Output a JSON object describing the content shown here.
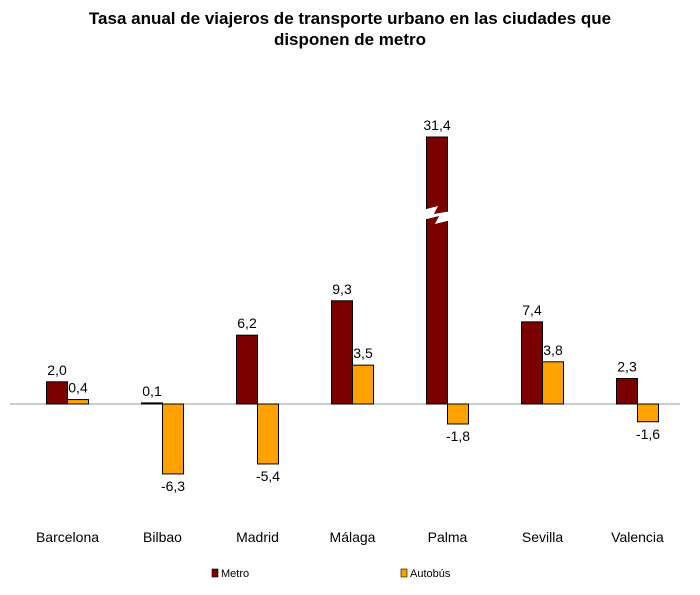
{
  "chart_data": {
    "type": "bar",
    "title_lines": [
      "Tasa anual de viajeros de transporte urbano en las ciudades que",
      "disponen de metro"
    ],
    "categories": [
      "Barcelona",
      "Bilbao",
      "Madrid",
      "Málaga",
      "Palma",
      "Sevilla",
      "Valencia"
    ],
    "series": [
      {
        "name": "Metro",
        "color": "#7b0000",
        "values": [
          2.0,
          0.1,
          6.2,
          9.3,
          31.4,
          7.4,
          2.3
        ],
        "labels": [
          "2,0",
          "0,1",
          "6,2",
          "9,3",
          "31,4",
          "7,4",
          "2,3"
        ]
      },
      {
        "name": "Autobús",
        "color": "#ffa200",
        "values": [
          0.4,
          -6.3,
          -5.4,
          3.5,
          -1.8,
          3.8,
          -1.6
        ],
        "labels": [
          "0,4",
          "-6,3",
          "-5,4",
          "3,5",
          "-1,8",
          "3,8",
          "-1,6"
        ]
      }
    ],
    "axis_break": {
      "category": "Palma",
      "series": "Metro"
    },
    "xlabel": "",
    "ylabel": "",
    "grid": false,
    "legend_position": "bottom"
  }
}
